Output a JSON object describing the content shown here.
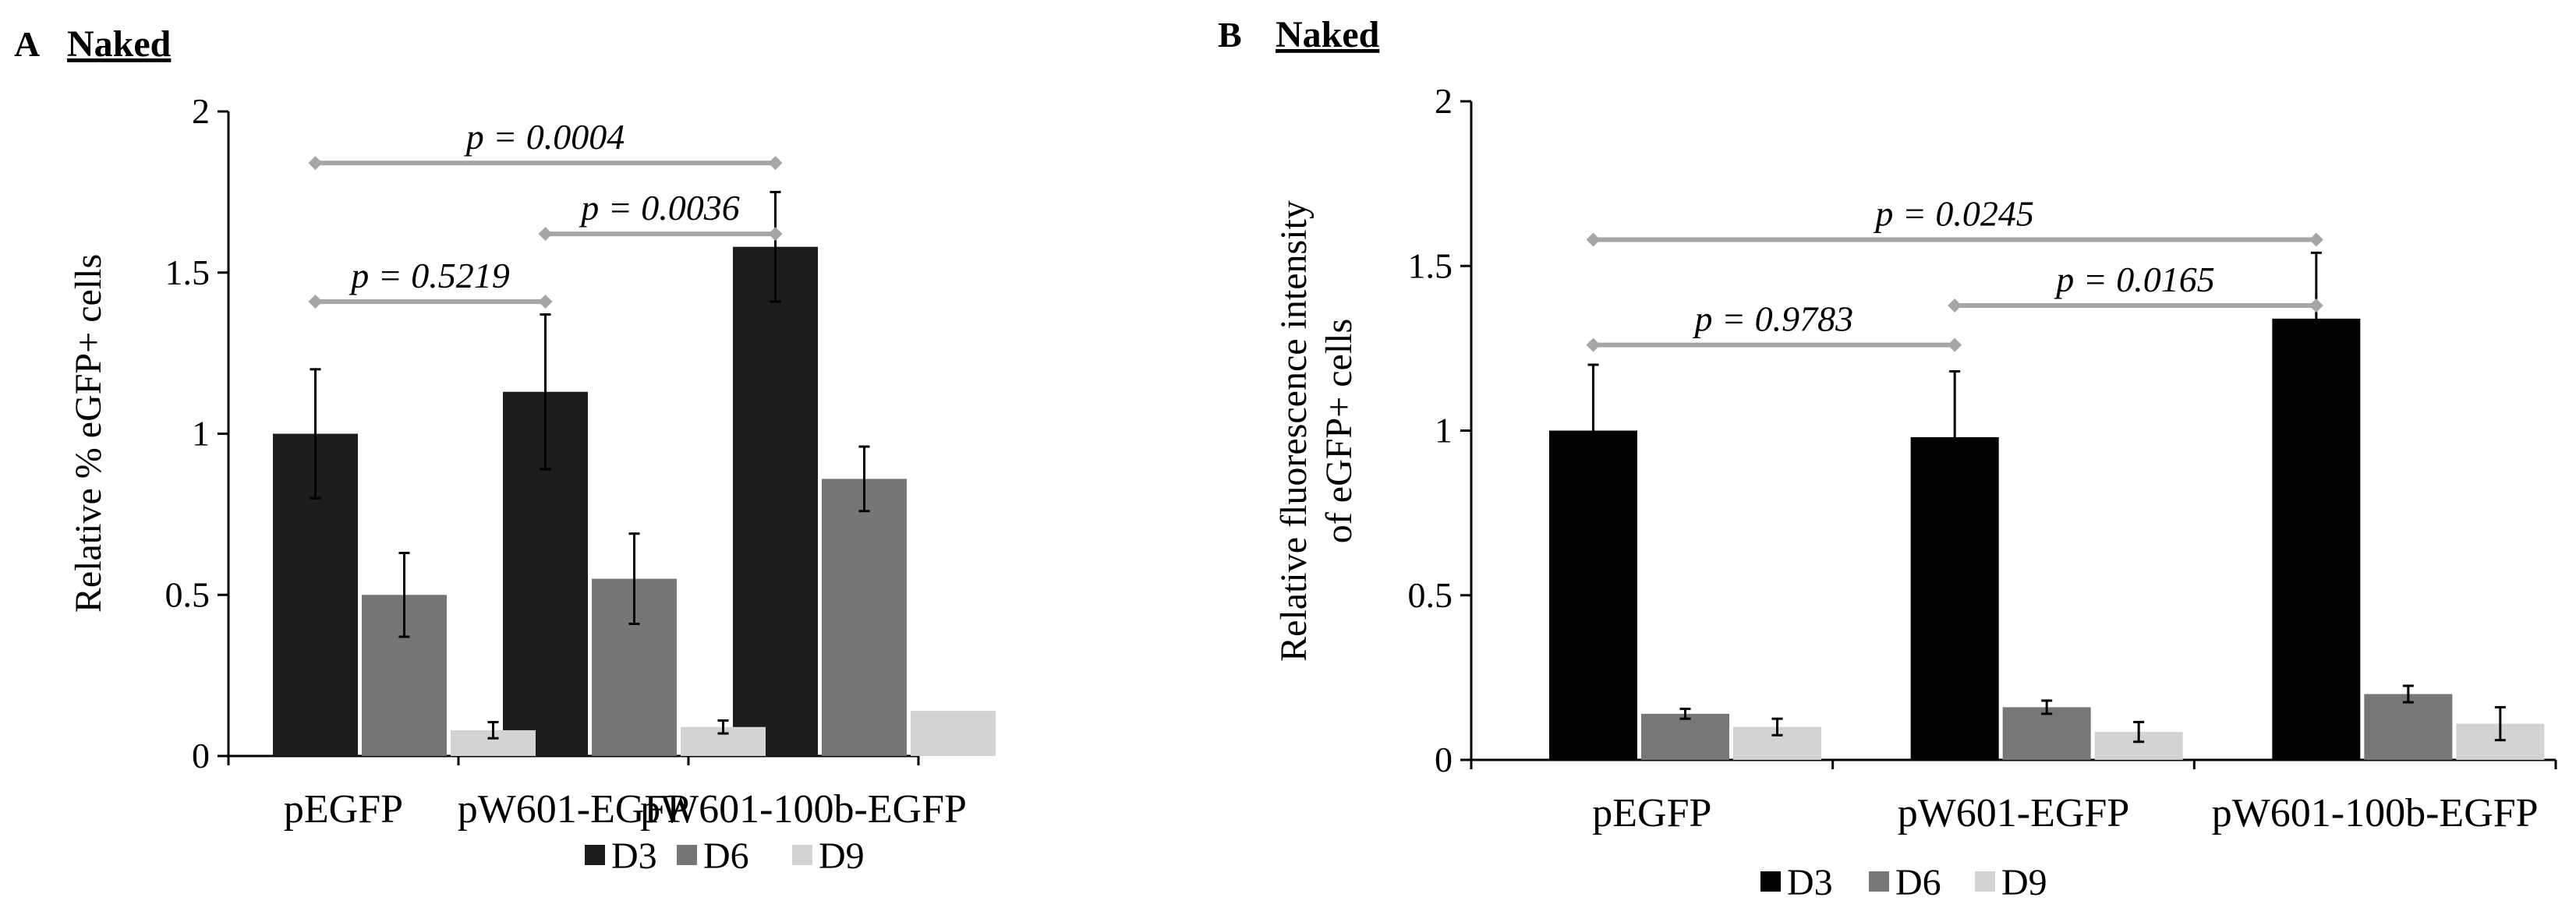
{
  "chart_data": [
    {
      "panel": "A",
      "type": "bar",
      "title": "Naked",
      "xlabel": "",
      "ylabel": "Relative % eGFP+ cells",
      "ylim": [
        0,
        2
      ],
      "yticks": [
        "0",
        "0.5",
        "1",
        "1.5",
        "2"
      ],
      "categories": [
        "pEGFP",
        "pW601-EGFP",
        "pW601-100b-EGFP"
      ],
      "series": [
        {
          "name": "D3",
          "color": "#1c1c1c",
          "values": [
            1.0,
            1.13,
            1.58
          ],
          "errors": [
            0.2,
            0.24,
            0.17
          ]
        },
        {
          "name": "D6",
          "color": "#767676",
          "values": [
            0.5,
            0.55,
            0.86
          ],
          "errors": [
            0.13,
            0.14,
            0.1
          ]
        },
        {
          "name": "D9",
          "color": "#d3d3d3",
          "values": [
            0.08,
            0.09,
            0.14
          ],
          "errors": [
            0.025,
            0.02,
            0
          ]
        }
      ],
      "comparisons": [
        {
          "label": "p = 0.0004",
          "from": 0,
          "to": 2,
          "y": 1.84
        },
        {
          "label": "p = 0.0036",
          "from": 1,
          "to": 2,
          "y": 1.62
        },
        {
          "label": "p = 0.5219",
          "from": 0,
          "to": 1,
          "y": 1.41
        }
      ],
      "legend": [
        "D3",
        "D6",
        "D9"
      ]
    },
    {
      "panel": "B",
      "type": "bar",
      "title": "Naked",
      "xlabel": "",
      "ylabel": [
        "Relative fluorescence intensity",
        "of eGFP+ cells"
      ],
      "ylim": [
        0,
        2
      ],
      "yticks": [
        "0",
        "0.5",
        "1",
        "1.5",
        "2"
      ],
      "categories": [
        "pEGFP",
        "pW601-EGFP",
        "pW601-100b-EGFP"
      ],
      "series": [
        {
          "name": "D3",
          "color": "#000000",
          "values": [
            1.0,
            0.98,
            1.34
          ],
          "errors": [
            0.2,
            0.2,
            0.2
          ]
        },
        {
          "name": "D6",
          "color": "#777777",
          "values": [
            0.14,
            0.16,
            0.2
          ],
          "errors": [
            0.015,
            0.02,
            0.025
          ]
        },
        {
          "name": "D9",
          "color": "#d3d3d3",
          "values": [
            0.1,
            0.085,
            0.11
          ],
          "errors": [
            0.025,
            0.03,
            0.05
          ]
        }
      ],
      "comparisons": [
        {
          "label": "p = 0.0245",
          "from": 0,
          "to": 2,
          "y": 1.58
        },
        {
          "label": "p = 0.0165",
          "from": 1,
          "to": 2,
          "y": 1.38
        },
        {
          "label": "p = 0.9783",
          "from": 0,
          "to": 1,
          "y": 1.26
        }
      ],
      "legend": [
        "D3",
        "D6",
        "D9"
      ]
    }
  ]
}
